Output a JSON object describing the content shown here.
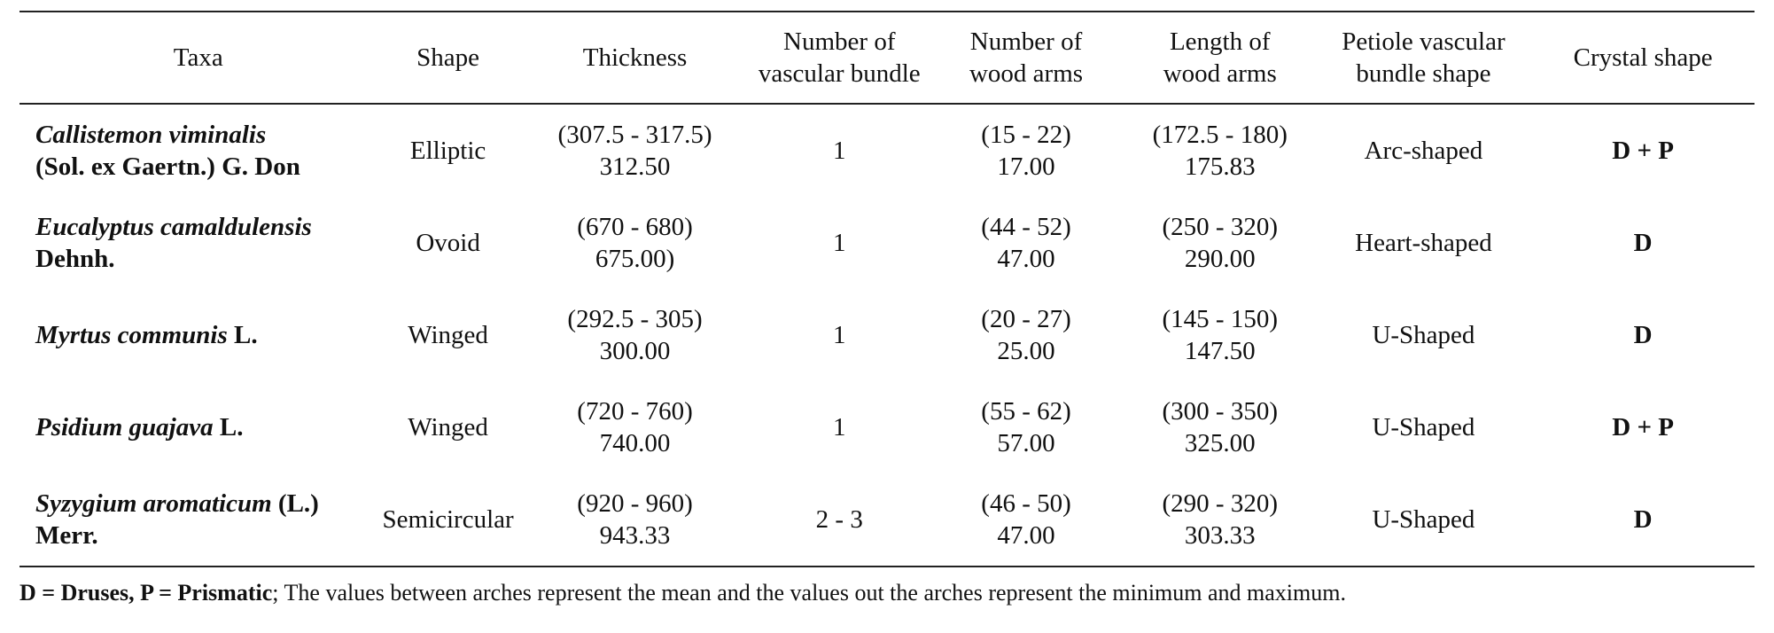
{
  "table": {
    "headers": [
      {
        "line1": "Taxa",
        "line2": ""
      },
      {
        "line1": "Shape",
        "line2": ""
      },
      {
        "line1": "Thickness",
        "line2": ""
      },
      {
        "line1": "Number of",
        "line2": "vascular bundle"
      },
      {
        "line1": "Number of",
        "line2": "wood arms"
      },
      {
        "line1": "Length of",
        "line2": "wood arms"
      },
      {
        "line1": "Petiole vascular",
        "line2": "bundle shape"
      },
      {
        "line1": "Crystal shape",
        "line2": ""
      }
    ],
    "rows": [
      {
        "taxa_italic": "Callistemon viminalis",
        "taxa_authority_line1": "",
        "taxa_line2": "(Sol. ex Gaertn.) G. Don",
        "shape": "Elliptic",
        "thickness_range": "(307.5 - 317.5)",
        "thickness_mean": "312.50",
        "vascular_bundle": "1",
        "wood_arms_range": "(15 - 22)",
        "wood_arms_mean": "17.00",
        "wood_length_range": "(172.5 - 180)",
        "wood_length_mean": "175.83",
        "petiole_shape": "Arc-shaped",
        "crystal": "D + P"
      },
      {
        "taxa_italic": "Eucalyptus camaldulensis",
        "taxa_authority_line1": "",
        "taxa_line2": "Dehnh.",
        "shape": "Ovoid",
        "thickness_range": "(670 - 680)",
        "thickness_mean": "675.00)",
        "vascular_bundle": "1",
        "wood_arms_range": "(44 - 52)",
        "wood_arms_mean": "47.00",
        "wood_length_range": "(250 - 320)",
        "wood_length_mean": "290.00",
        "petiole_shape": "Heart-shaped",
        "crystal": "D"
      },
      {
        "taxa_italic": "Myrtus communis",
        "taxa_authority_line1": " L.",
        "taxa_line2": "",
        "shape": "Winged",
        "thickness_range": "(292.5 - 305)",
        "thickness_mean": "300.00",
        "vascular_bundle": "1",
        "wood_arms_range": "(20 - 27)",
        "wood_arms_mean": "25.00",
        "wood_length_range": "(145 - 150)",
        "wood_length_mean": "147.50",
        "petiole_shape": "U-Shaped",
        "crystal": "D"
      },
      {
        "taxa_italic": "Psidium guajava",
        "taxa_authority_line1": " L.",
        "taxa_line2": "",
        "shape": "Winged",
        "thickness_range": "(720 - 760)",
        "thickness_mean": "740.00",
        "vascular_bundle": "1",
        "wood_arms_range": "(55 - 62)",
        "wood_arms_mean": "57.00",
        "wood_length_range": "(300 - 350)",
        "wood_length_mean": "325.00",
        "petiole_shape": "U-Shaped",
        "crystal": "D + P"
      },
      {
        "taxa_italic": "Syzygium aromaticum",
        "taxa_authority_line1": " (L.)",
        "taxa_line2": "Merr.",
        "shape": "Semicircular",
        "thickness_range": "(920 - 960)",
        "thickness_mean": "943.33",
        "vascular_bundle": "2 - 3",
        "wood_arms_range": "(46 - 50)",
        "wood_arms_mean": "47.00",
        "wood_length_range": "(290 - 320)",
        "wood_length_mean": "303.33",
        "petiole_shape": "U-Shaped",
        "crystal": "D"
      }
    ]
  },
  "footnote": {
    "bold_part": "D = Druses, P = Prismatic",
    "rest": "; The values between arches represent the mean and the values out the arches represent the minimum and maximum."
  }
}
